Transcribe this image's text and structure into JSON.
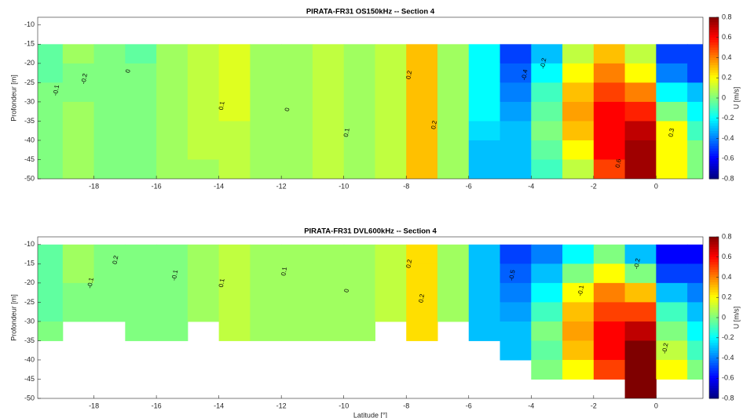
{
  "chart_data": [
    {
      "type": "heatmap",
      "title": "PIRATA-FR31 OS150kHz -- Section 4",
      "ylabel": "Profondeur [m]",
      "colorbar_label": "U [m/s]",
      "colormap": [
        "#00007f",
        "#0000ff",
        "#0080ff",
        "#00ffff",
        "#80ff80",
        "#ffff00",
        "#ff8000",
        "#ff0000",
        "#7f0000"
      ],
      "xlim": [
        -19.8,
        1.5
      ],
      "ylim": [
        -50,
        -8
      ],
      "clim": [
        -0.8,
        0.8
      ],
      "xticks": [
        -18,
        -16,
        -14,
        -12,
        -10,
        -8,
        -6,
        -4,
        -2,
        0
      ],
      "yticks": [
        -10,
        -15,
        -20,
        -25,
        -30,
        -35,
        -40,
        -45,
        -50
      ],
      "cticks": [
        0.8,
        0.6,
        0.4,
        0.2,
        0,
        -0.2,
        -0.4,
        -0.6,
        -0.8
      ],
      "x": [
        -19.5,
        -18.5,
        -17.5,
        -16.5,
        -15.5,
        -14.5,
        -13.5,
        -12.5,
        -11.5,
        -10.5,
        -9.5,
        -8.5,
        -7.5,
        -6.5,
        -5.5,
        -4.5,
        -3.5,
        -2.5,
        -1.5,
        -0.5,
        0.5,
        1.5
      ],
      "y": [
        -17.5,
        -22.5,
        -27.5,
        -32.5,
        -37.5,
        -42.5,
        -47.5
      ],
      "values": [
        [
          -0.05,
          0.05,
          0,
          -0.05,
          0.05,
          0.1,
          0.15,
          0.05,
          0.05,
          0.1,
          0.05,
          0.1,
          0.3,
          0.05,
          -0.2,
          -0.5,
          -0.3,
          0.1,
          0.3,
          0.1,
          -0.5,
          -0.5
        ],
        [
          -0.05,
          0,
          0,
          0,
          0.05,
          0.1,
          0.15,
          0.05,
          0.05,
          0.1,
          0.05,
          0.1,
          0.3,
          0.05,
          -0.2,
          -0.45,
          -0.2,
          0.2,
          0.4,
          0.2,
          -0.4,
          -0.5
        ],
        [
          0,
          0,
          0,
          0,
          0.05,
          0.1,
          0.15,
          0.05,
          0.05,
          0.1,
          0.05,
          0.1,
          0.3,
          0.05,
          -0.2,
          -0.4,
          -0.1,
          0.3,
          0.5,
          0.4,
          -0.2,
          -0.3
        ],
        [
          0,
          0.05,
          0,
          0,
          0.05,
          0.1,
          0.15,
          0.05,
          0.05,
          0.1,
          0.05,
          0.1,
          0.3,
          0.05,
          -0.2,
          -0.35,
          -0.05,
          0.35,
          0.6,
          0.55,
          0,
          -0.2
        ],
        [
          0,
          0.05,
          0,
          0,
          0.05,
          0.1,
          0.1,
          0.05,
          0.05,
          0.1,
          0.05,
          0.1,
          0.3,
          0.05,
          -0.25,
          -0.3,
          0,
          0.3,
          0.6,
          0.7,
          0.2,
          -0.1
        ],
        [
          0,
          0.05,
          0,
          0,
          0.05,
          0.1,
          0.1,
          0.05,
          0.05,
          0.1,
          0.05,
          0.1,
          0.3,
          0.05,
          -0.3,
          -0.3,
          -0.05,
          0.2,
          0.6,
          0.75,
          0.2,
          0
        ],
        [
          0,
          0.05,
          0,
          0,
          0.05,
          0.05,
          0.1,
          0.05,
          0.05,
          0.1,
          0.05,
          0.1,
          0.3,
          0.05,
          -0.3,
          -0.3,
          -0.1,
          0.1,
          0.5,
          0.75,
          0.2,
          0
        ]
      ],
      "contour_labels": [
        {
          "x": -19.2,
          "y": -27,
          "label": -0.1
        },
        {
          "x": -18.3,
          "y": -24,
          "label": -0.2
        },
        {
          "x": -16.9,
          "y": -22,
          "label": 0
        },
        {
          "x": -13.9,
          "y": -31,
          "label": 0.1
        },
        {
          "x": -11.8,
          "y": -32,
          "label": 0
        },
        {
          "x": -9.9,
          "y": -38,
          "label": 0.1
        },
        {
          "x": -7.9,
          "y": -23,
          "label": 0.2
        },
        {
          "x": -7.1,
          "y": -36,
          "label": 0.2
        },
        {
          "x": -4.2,
          "y": -23,
          "label": -0.4
        },
        {
          "x": -3.6,
          "y": -20,
          "label": -0.2
        },
        {
          "x": -1.2,
          "y": -46,
          "label": 0.6
        },
        {
          "x": 0.5,
          "y": -38,
          "label": 0.3
        }
      ]
    },
    {
      "type": "heatmap",
      "title": "PIRATA-FR31 DVL600kHz -- Section 4",
      "xlabel": "Latitude [°]",
      "ylabel": "Profondeur [m]",
      "colorbar_label": "U [m/s]",
      "colormap": [
        "#00007f",
        "#0000ff",
        "#0080ff",
        "#00ffff",
        "#80ff80",
        "#ffff00",
        "#ff8000",
        "#ff0000",
        "#7f0000"
      ],
      "xlim": [
        -19.8,
        1.5
      ],
      "ylim": [
        -50,
        -8
      ],
      "clim": [
        -0.8,
        0.8
      ],
      "xticks": [
        -18,
        -16,
        -14,
        -12,
        -10,
        -8,
        -6,
        -4,
        -2,
        0
      ],
      "yticks": [
        -10,
        -15,
        -20,
        -25,
        -30,
        -35,
        -40,
        -45,
        -50
      ],
      "cticks": [
        0.8,
        0.6,
        0.4,
        0.2,
        0,
        -0.2,
        -0.4,
        -0.6,
        -0.8
      ],
      "x": [
        -19.5,
        -18.5,
        -17.5,
        -16.5,
        -15.5,
        -14.5,
        -13.5,
        -12.5,
        -11.5,
        -10.5,
        -9.5,
        -8.5,
        -7.5,
        -6.5,
        -5.5,
        -4.5,
        -3.5,
        -2.5,
        -1.5,
        -0.5,
        0.5,
        1.5
      ],
      "y": [
        -12.5,
        -17.5,
        -22.5,
        -27.5,
        -32.5,
        -37.5,
        -42.5,
        -47.5
      ],
      "values": [
        [
          -0.05,
          0.05,
          0,
          0,
          0,
          0.05,
          0.1,
          0.05,
          0.05,
          0.05,
          0.05,
          0.1,
          0.25,
          0.05,
          -0.3,
          -0.5,
          -0.4,
          -0.2,
          0,
          -0.3,
          -0.6,
          -0.6
        ],
        [
          -0.05,
          0.05,
          0,
          0,
          0,
          0.05,
          0.1,
          0.05,
          0.05,
          0.05,
          0.05,
          0.1,
          0.25,
          0.05,
          -0.3,
          -0.45,
          -0.3,
          0,
          0.2,
          0,
          -0.5,
          -0.5
        ],
        [
          -0.05,
          0,
          0,
          0,
          0,
          0.05,
          0.1,
          0.05,
          0.05,
          0.05,
          0.05,
          0.1,
          0.25,
          0.05,
          -0.3,
          -0.4,
          -0.2,
          0.2,
          0.4,
          0.3,
          -0.3,
          -0.4
        ],
        [
          -0.05,
          0,
          0,
          0,
          0,
          0.05,
          0.1,
          0.05,
          0.05,
          0.05,
          0.05,
          0.1,
          0.25,
          0.05,
          -0.3,
          -0.35,
          -0.1,
          0.3,
          0.5,
          0.5,
          -0.1,
          -0.3
        ],
        [
          0,
          null,
          null,
          0,
          0,
          null,
          0.1,
          0.05,
          0.05,
          0.05,
          0.05,
          null,
          0.25,
          null,
          -0.3,
          -0.3,
          0,
          0.35,
          0.6,
          0.7,
          0,
          -0.2
        ],
        [
          null,
          null,
          null,
          null,
          null,
          null,
          null,
          null,
          null,
          null,
          null,
          null,
          null,
          null,
          null,
          -0.3,
          -0.05,
          0.3,
          0.6,
          0.8,
          0.1,
          -0.1
        ],
        [
          null,
          null,
          null,
          null,
          null,
          null,
          null,
          null,
          null,
          null,
          null,
          null,
          null,
          null,
          null,
          null,
          0,
          0.2,
          0.5,
          0.8,
          0.2,
          0
        ],
        [
          null,
          null,
          null,
          null,
          null,
          null,
          null,
          null,
          null,
          null,
          null,
          null,
          null,
          null,
          null,
          null,
          null,
          null,
          null,
          0.8,
          null,
          null
        ]
      ],
      "contour_labels": [
        {
          "x": -18.1,
          "y": -20,
          "label": -0.1
        },
        {
          "x": -17.3,
          "y": -14,
          "label": 0.2
        },
        {
          "x": -15.4,
          "y": -18,
          "label": -0.1
        },
        {
          "x": -13.9,
          "y": -20,
          "label": 0.1
        },
        {
          "x": -11.9,
          "y": -17,
          "label": 0.1
        },
        {
          "x": -9.9,
          "y": -22,
          "label": 0
        },
        {
          "x": -7.9,
          "y": -15,
          "label": 0.2
        },
        {
          "x": -7.5,
          "y": -24,
          "label": 0.2
        },
        {
          "x": -4.6,
          "y": -18,
          "label": -0.5
        },
        {
          "x": -2.4,
          "y": -22,
          "label": -0.1
        },
        {
          "x": -0.6,
          "y": -15,
          "label": -0.2
        },
        {
          "x": 0.3,
          "y": -37,
          "label": -0.2
        }
      ]
    }
  ]
}
